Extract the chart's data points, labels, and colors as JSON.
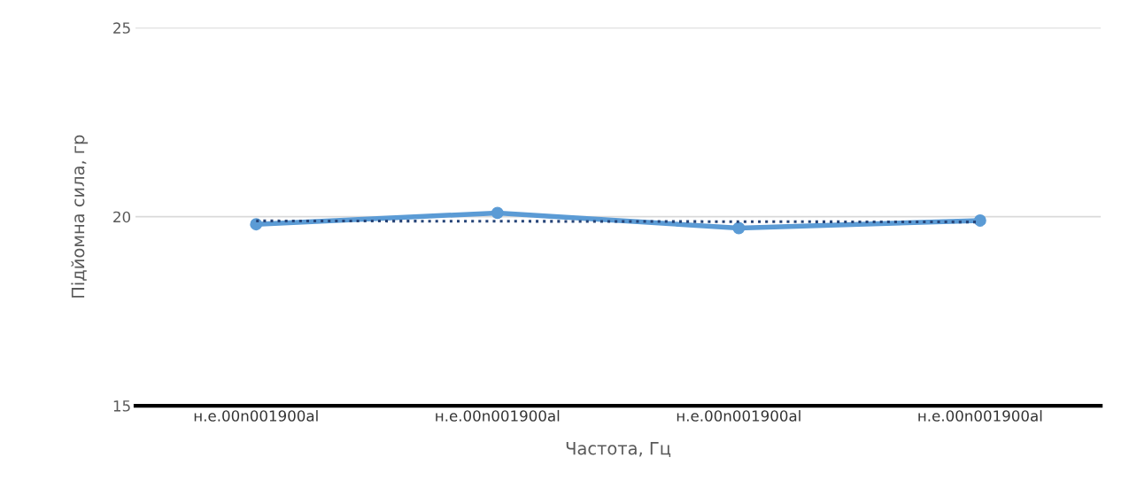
{
  "chart_data": {
    "type": "line",
    "xlabel": "Частота, Гц",
    "ylabel": "Підйомна сила, гр",
    "categories": [
      "н.е.00n001900al",
      "н.е.00n001900al",
      "н.е.00n001900al",
      "н.е.00n001900al"
    ],
    "series": [
      {
        "color": "#5b9bd5",
        "values": [
          19.8,
          20.1,
          19.7,
          19.9
        ],
        "marker": "circle",
        "line_style": "solid"
      },
      {
        "color": "#264478",
        "values": [
          19.89,
          19.88,
          19.87,
          19.86
        ],
        "marker": "none",
        "line_style": "dotted"
      }
    ],
    "ylim": [
      15,
      25
    ],
    "yticks": [
      15,
      20,
      25
    ],
    "grid": "y",
    "legend": false
  }
}
